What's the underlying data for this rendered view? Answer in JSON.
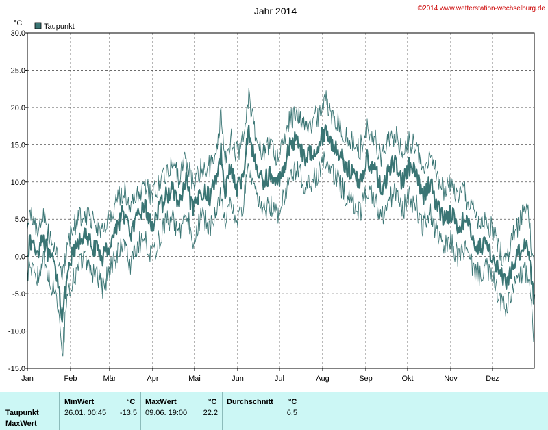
{
  "title": "Jahr 2014",
  "copyright": "©2014 www.wetterstation-wechselburg.de",
  "unit_label": "°C",
  "legend_label": "Taupunkt",
  "colors": {
    "series": "#3a7574",
    "minmax": "#3a7574",
    "grid": "#555555",
    "stats_bg": "#ccf7f5",
    "copyright": "#cc0000"
  },
  "chart_data": {
    "type": "line",
    "title": "Jahr 2014",
    "ylabel": "°C",
    "ylim": [
      -15,
      30
    ],
    "yticks": [
      -15,
      -10,
      -5,
      0,
      5,
      10,
      15,
      20,
      25,
      30
    ],
    "ytick_labels": [
      "-15.0",
      "-10.0",
      "-5.0",
      "0.0",
      "5.0",
      "10.0",
      "15.0",
      "20.0",
      "25.0",
      "30.0"
    ],
    "xlim": [
      1,
      365
    ],
    "month_labels": [
      "Jan",
      "Feb",
      "Mär",
      "Apr",
      "Mai",
      "Jun",
      "Jul",
      "Aug",
      "Sep",
      "Okt",
      "Nov",
      "Dez"
    ],
    "month_start_days": [
      1,
      32,
      60,
      91,
      121,
      152,
      182,
      213,
      244,
      274,
      305,
      335
    ],
    "grid": true,
    "legend_position": "top-left",
    "series": [
      {
        "name": "Taupunkt",
        "key_days": [
          1,
          4,
          8,
          12,
          16,
          20,
          23,
          26,
          29,
          33,
          37,
          41,
          45,
          50,
          55,
          60,
          65,
          70,
          75,
          80,
          85,
          90,
          95,
          100,
          105,
          110,
          115,
          120,
          126,
          132,
          137,
          140,
          143,
          147,
          151,
          155,
          160,
          165,
          170,
          175,
          180,
          185,
          190,
          195,
          200,
          205,
          210,
          215,
          220,
          225,
          230,
          235,
          240,
          245,
          250,
          255,
          260,
          265,
          270,
          275,
          280,
          285,
          290,
          295,
          300,
          305,
          310,
          315,
          320,
          325,
          330,
          335,
          340,
          345,
          350,
          355,
          360,
          365
        ],
        "key_values": [
          1,
          2,
          0.5,
          3,
          0,
          -1,
          -3,
          -8,
          -4,
          0,
          1.5,
          3,
          2,
          1,
          0,
          1.5,
          4,
          6,
          3,
          5,
          7,
          4,
          6,
          8,
          9,
          7,
          10,
          6,
          9,
          8,
          11,
          14,
          9,
          12,
          9,
          10,
          17,
          12,
          10,
          11,
          9.5,
          12,
          15,
          16,
          13,
          14,
          15,
          17,
          15,
          14,
          12,
          11,
          10,
          13,
          12,
          9,
          11,
          13,
          10,
          12,
          11,
          8,
          10,
          7,
          5,
          6,
          4,
          5,
          3,
          1,
          2,
          0,
          -2,
          -4,
          -1,
          1,
          2,
          -6
        ],
        "noise": 1.3
      },
      {
        "name": "MaxWert",
        "key_days": [
          1,
          4,
          8,
          12,
          16,
          20,
          23,
          26,
          29,
          33,
          37,
          41,
          45,
          50,
          55,
          60,
          65,
          70,
          75,
          80,
          85,
          90,
          95,
          100,
          105,
          110,
          115,
          120,
          126,
          132,
          137,
          140,
          143,
          147,
          151,
          155,
          160,
          165,
          170,
          175,
          180,
          185,
          190,
          195,
          200,
          205,
          210,
          215,
          220,
          225,
          230,
          235,
          240,
          245,
          250,
          255,
          260,
          265,
          270,
          275,
          280,
          285,
          290,
          295,
          300,
          305,
          310,
          315,
          320,
          325,
          330,
          335,
          340,
          345,
          350,
          355,
          360,
          365
        ],
        "key_values": [
          4,
          6,
          3.5,
          5.5,
          3,
          2,
          0,
          -3,
          0,
          3.5,
          5,
          6,
          5.5,
          4.5,
          3.5,
          5,
          7,
          9,
          6.5,
          8,
          10,
          8,
          9.5,
          11,
          12,
          10.5,
          13,
          10,
          12,
          12,
          15,
          19,
          13,
          16,
          14,
          15,
          22,
          16,
          14,
          15,
          13.5,
          16,
          18.5,
          19.5,
          17,
          18,
          19,
          21,
          19,
          18,
          16,
          15,
          14.5,
          17,
          16,
          13,
          15,
          16.5,
          14,
          15.5,
          14.5,
          12,
          13.5,
          11,
          9,
          10,
          8,
          8.5,
          6.5,
          4.5,
          5,
          3.5,
          1,
          -1,
          3,
          5,
          7,
          -2
        ],
        "noise": 1.6
      },
      {
        "name": "MinWert",
        "key_days": [
          1,
          4,
          8,
          12,
          16,
          20,
          23,
          26,
          29,
          33,
          37,
          41,
          45,
          50,
          55,
          60,
          65,
          70,
          75,
          80,
          85,
          90,
          95,
          100,
          105,
          110,
          115,
          120,
          126,
          132,
          137,
          140,
          143,
          147,
          151,
          155,
          160,
          165,
          170,
          175,
          180,
          185,
          190,
          195,
          200,
          205,
          210,
          215,
          220,
          225,
          230,
          235,
          240,
          245,
          250,
          255,
          260,
          265,
          270,
          275,
          280,
          285,
          290,
          295,
          300,
          305,
          310,
          315,
          320,
          325,
          330,
          335,
          340,
          345,
          350,
          355,
          360,
          365
        ],
        "key_values": [
          -2,
          -1,
          -3,
          0,
          -3,
          -4,
          -6,
          -13,
          -7,
          -3.5,
          -2,
          0,
          -1.5,
          -2.5,
          -4,
          -2,
          0,
          2,
          -1,
          1.5,
          3,
          0,
          2,
          4.5,
          5,
          3,
          6,
          2,
          5.5,
          4,
          6,
          9,
          5,
          7.5,
          4.5,
          6,
          12,
          8,
          6,
          7,
          5.5,
          8,
          11,
          12,
          9,
          10,
          11,
          13,
          11,
          10,
          8,
          7,
          6,
          9,
          8,
          5,
          7,
          9,
          6,
          8,
          7,
          4,
          6,
          3,
          1,
          2,
          0,
          1,
          -1,
          -2.5,
          -1.5,
          -3,
          -5.5,
          -7.5,
          -4,
          -2.5,
          -2,
          -11
        ],
        "noise": 1.6
      }
    ]
  },
  "stats": {
    "headers": {
      "min": "MinWert",
      "max": "MaxWert",
      "avg": "Durchschnitt",
      "unit": "°C"
    },
    "row_labels": [
      "Taupunkt",
      "MaxWert"
    ],
    "min_datetime": "26.01.  00:45",
    "min_value": "-13.5",
    "max_datetime": "09.06.  19:00",
    "max_value": "22.2",
    "avg_value": "6.5"
  }
}
